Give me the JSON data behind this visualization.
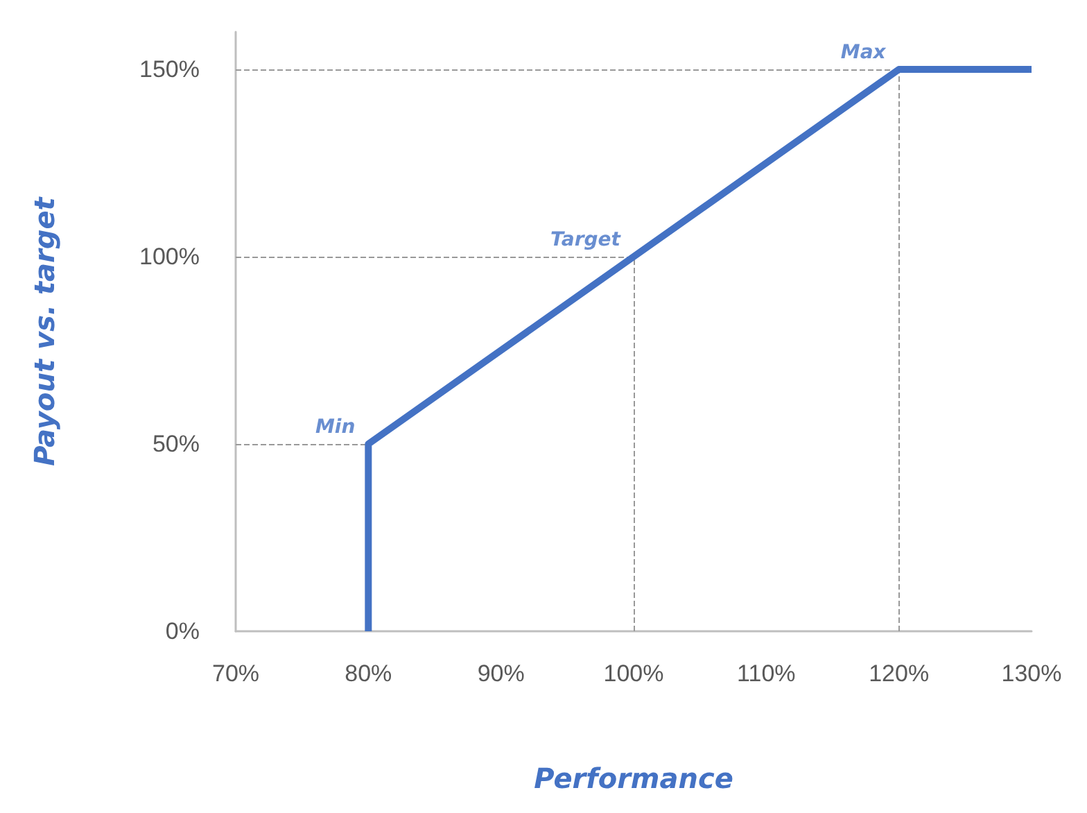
{
  "chart_data": {
    "type": "line",
    "xlabel": "Performance",
    "ylabel": "Payout vs. target",
    "x": [
      80,
      80,
      120,
      130
    ],
    "series": [
      {
        "color": "#4472c4",
        "values": [
          0,
          50,
          150,
          150
        ]
      }
    ],
    "xlim": [
      70,
      130
    ],
    "ylim": [
      0,
      160
    ],
    "xticks": [
      {
        "value": 70,
        "label": "70%"
      },
      {
        "value": 80,
        "label": "80%"
      },
      {
        "value": 90,
        "label": "90%"
      },
      {
        "value": 100,
        "label": "100%"
      },
      {
        "value": 110,
        "label": "110%"
      },
      {
        "value": 120,
        "label": "120%"
      },
      {
        "value": 130,
        "label": "130%"
      }
    ],
    "yticks": [
      {
        "value": 0,
        "label": "0%"
      },
      {
        "value": 50,
        "label": "50%"
      },
      {
        "value": 100,
        "label": "100%"
      },
      {
        "value": 150,
        "label": "150%"
      }
    ],
    "annotations": [
      {
        "text": "Min",
        "x": 80,
        "y": 50
      },
      {
        "text": "Target",
        "x": 100,
        "y": 100
      },
      {
        "text": "Max",
        "x": 120,
        "y": 150
      }
    ],
    "marker": "none",
    "line_style": "solid"
  }
}
